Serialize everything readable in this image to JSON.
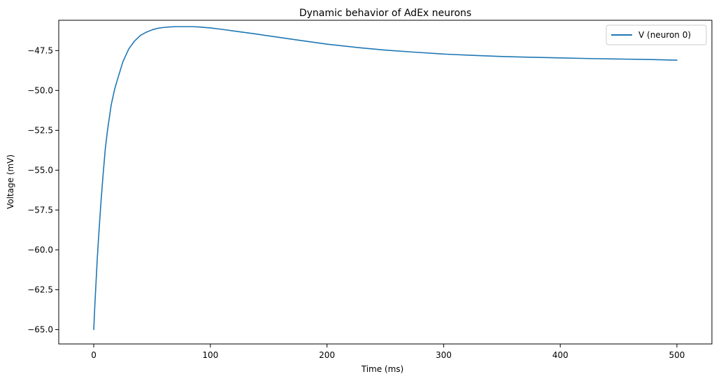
{
  "chart_data": {
    "type": "line",
    "title": "Dynamic behavior of AdEx neurons",
    "xlabel": "Time (ms)",
    "ylabel": "Voltage (mV)",
    "xlim": [
      -30,
      530
    ],
    "ylim": [
      -65.9,
      -45.6
    ],
    "grid": false,
    "legend_position": "top-right",
    "x_ticks": [
      0,
      100,
      200,
      300,
      400,
      500
    ],
    "x_tick_labels": [
      "0",
      "100",
      "200",
      "300",
      "400",
      "500"
    ],
    "y_ticks": [
      -65.0,
      -62.5,
      -60.0,
      -57.5,
      -55.0,
      -52.5,
      -50.0,
      -47.5
    ],
    "y_tick_labels": [
      "−65.0",
      "−62.5",
      "−60.0",
      "−57.5",
      "−55.0",
      "−52.5",
      "−50.0",
      "−47.5"
    ],
    "series": [
      {
        "name": "V (neuron 0)",
        "color": "#1f77b4",
        "x": [
          0,
          1,
          2,
          3,
          4,
          6,
          8,
          10,
          12,
          15,
          18,
          20,
          25,
          30,
          35,
          40,
          45,
          50,
          55,
          60,
          65,
          70,
          75,
          80,
          85,
          90,
          100,
          110,
          120,
          130,
          140,
          150,
          175,
          200,
          225,
          250,
          275,
          300,
          325,
          350,
          375,
          400,
          425,
          450,
          475,
          500
        ],
        "y": [
          -65.0,
          -63.4,
          -62.0,
          -60.6,
          -59.4,
          -57.2,
          -55.3,
          -53.6,
          -52.4,
          -50.9,
          -49.9,
          -49.4,
          -48.2,
          -47.4,
          -46.9,
          -46.55,
          -46.35,
          -46.2,
          -46.1,
          -46.05,
          -46.02,
          -46.0,
          -46.0,
          -46.0,
          -46.0,
          -46.02,
          -46.08,
          -46.17,
          -46.27,
          -46.37,
          -46.47,
          -46.58,
          -46.84,
          -47.1,
          -47.3,
          -47.47,
          -47.6,
          -47.72,
          -47.8,
          -47.87,
          -47.92,
          -47.96,
          -48.0,
          -48.03,
          -48.06,
          -48.1
        ]
      }
    ]
  }
}
